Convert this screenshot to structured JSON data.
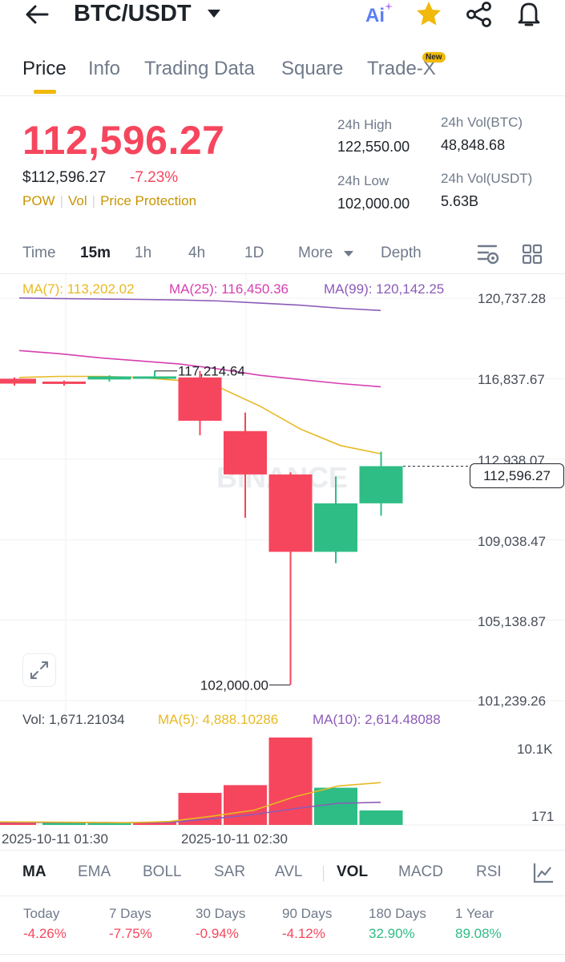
{
  "header": {
    "pair": "BTC/USDT",
    "ai_label": "Ai"
  },
  "tabs": [
    {
      "label": "Price",
      "active": true
    },
    {
      "label": "Info"
    },
    {
      "label": "Trading Data"
    },
    {
      "label": "Square"
    },
    {
      "label": "Trade-X",
      "badge": "New"
    }
  ],
  "ticker": {
    "last_price": "112,596.27",
    "usd_price": "$112,596.27",
    "change_pct": "-7.23%",
    "tags": [
      "POW",
      "Vol",
      "Price Protection"
    ],
    "high_label": "24h High",
    "high_value": "122,550.00",
    "low_label": "24h Low",
    "low_value": "102,000.00",
    "vol_btc_label": "24h Vol(BTC)",
    "vol_btc_value": "48,848.68",
    "vol_usdt_label": "24h Vol(USDT)",
    "vol_usdt_value": "5.63B"
  },
  "timeframes": {
    "time": "Time",
    "m15": "15m",
    "h1": "1h",
    "h4": "4h",
    "d1": "1D",
    "more": "More",
    "depth": "Depth",
    "active": "15m"
  },
  "chart_data": {
    "type": "candlestick",
    "ma_legend": {
      "ma7": "MA(7): 113,202.02",
      "ma25": "MA(25): 116,450.36",
      "ma99": "MA(99): 120,142.25"
    },
    "y_ticks": [
      "120,737.28",
      "116,837.67",
      "112,938.07",
      "109,038.47",
      "105,138.87",
      "101,239.26"
    ],
    "y_tick_values": [
      120737.28,
      116837.67,
      112938.07,
      109038.47,
      105138.87,
      101239.26
    ],
    "ylim": [
      101239.26,
      120737.28
    ],
    "candles": [
      {
        "open": 116837,
        "close": 116600,
        "high": 116900,
        "low": 116500
      },
      {
        "open": 116700,
        "close": 116600,
        "high": 116750,
        "low": 116500
      },
      {
        "open": 116800,
        "close": 116950,
        "high": 117000,
        "low": 116700
      },
      {
        "open": 116900,
        "close": 116950,
        "high": 117214.64,
        "low": 116850
      },
      {
        "open": 116900,
        "close": 114800,
        "high": 117214.64,
        "low": 114100
      },
      {
        "open": 114300,
        "close": 112200,
        "high": 115200,
        "low": 110100
      },
      {
        "open": 112200,
        "close": 108450,
        "high": 112300,
        "low": 102000
      },
      {
        "open": 108450,
        "close": 110800,
        "high": 112100,
        "low": 107900
      },
      {
        "open": 110800,
        "close": 112600,
        "high": 113300,
        "low": 110200
      }
    ],
    "ma7": [
      116900,
      116950,
      116950,
      116900,
      116750,
      116400,
      115500,
      114400,
      113600,
      113202.02
    ],
    "ma25": [
      118200,
      118050,
      117850,
      117700,
      117550,
      117300,
      117000,
      116800,
      116600,
      116450.36
    ],
    "ma99": [
      120750,
      120720,
      120700,
      120680,
      120650,
      120600,
      120500,
      120400,
      120250,
      120142.25
    ],
    "high_marker": "117,214.64",
    "low_marker": "102,000.00",
    "current_price_tag": "112,596.27",
    "watermark": "BINANCE",
    "volume": {
      "legend_vol": "Vol: 1,671.21034",
      "legend_ma5": "MA(5): 4,888.10286",
      "legend_ma10": "MA(10): 2,614.48088",
      "y_ticks": [
        "10.1K",
        "171"
      ],
      "ylim": [
        0,
        10100
      ],
      "bars": [
        {
          "value": 180,
          "dir": "down"
        },
        {
          "value": 171,
          "dir": "up"
        },
        {
          "value": 171,
          "dir": "up"
        },
        {
          "value": 200,
          "dir": "down"
        },
        {
          "value": 3700,
          "dir": "down"
        },
        {
          "value": 4600,
          "dir": "down"
        },
        {
          "value": 10100,
          "dir": "down"
        },
        {
          "value": 4300,
          "dir": "up"
        },
        {
          "value": 1671.21034,
          "dir": "up"
        }
      ],
      "ma5": [
        350,
        330,
        300,
        250,
        400,
        1000,
        1700,
        3300,
        4500,
        4888.10286
      ],
      "ma10": [
        300,
        290,
        280,
        260,
        300,
        700,
        1200,
        1900,
        2500,
        2614.48088
      ]
    },
    "x_ticks": [
      "2025-10-11 01:30",
      "2025-10-11 02:30"
    ]
  },
  "indicators": {
    "items": [
      "MA",
      "EMA",
      "BOLL",
      "SAR",
      "AVL",
      "VOL",
      "MACD",
      "RSI"
    ],
    "active": [
      "MA",
      "VOL"
    ]
  },
  "performance": [
    {
      "label": "Today",
      "value": "-4.26%",
      "dir": "down"
    },
    {
      "label": "7 Days",
      "value": "-7.75%",
      "dir": "down"
    },
    {
      "label": "30 Days",
      "value": "-0.94%",
      "dir": "down"
    },
    {
      "label": "90 Days",
      "value": "-4.12%",
      "dir": "down"
    },
    {
      "label": "180 Days",
      "value": "32.90%",
      "dir": "up"
    },
    {
      "label": "1 Year",
      "value": "89.08%",
      "dir": "up"
    }
  ],
  "colors": {
    "up": "#2ebd85",
    "down": "#f6465d",
    "ma7": "#e8b923",
    "ma25": "#d63fb0",
    "ma99": "#8c5bb8",
    "accent": "#f0b90b"
  }
}
